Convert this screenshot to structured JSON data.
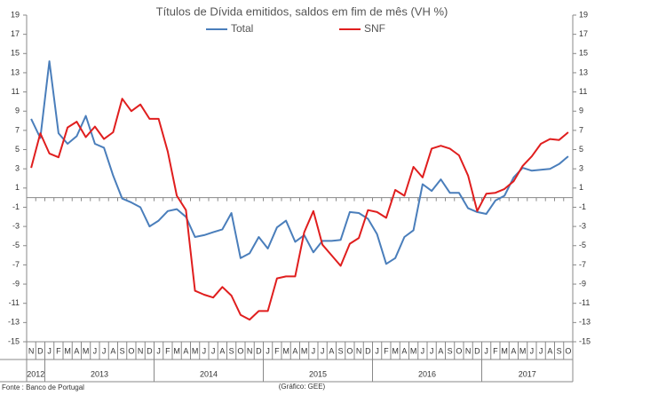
{
  "chart_data": {
    "type": "line",
    "title": "Títulos de Dívida emitidos, saldos em fim de mês  (VH %)",
    "categories": [
      "N",
      "D",
      "J",
      "F",
      "M",
      "A",
      "M",
      "J",
      "J",
      "A",
      "S",
      "O",
      "N",
      "D",
      "J",
      "F",
      "M",
      "A",
      "M",
      "J",
      "J",
      "A",
      "S",
      "O",
      "N",
      "D",
      "J",
      "F",
      "M",
      "A",
      "M",
      "J",
      "J",
      "A",
      "S",
      "O",
      "N",
      "D",
      "J",
      "F",
      "M",
      "A",
      "M",
      "J",
      "J",
      "A",
      "S",
      "O",
      "N",
      "D",
      "J",
      "F",
      "M",
      "A",
      "M",
      "J",
      "J",
      "A",
      "S",
      "O"
    ],
    "years": [
      "2012",
      "2013",
      "2014",
      "2015",
      "2016",
      "2017"
    ],
    "series": [
      {
        "name": "Total",
        "color": "#4a7ebb",
        "values": [
          8.2,
          6.2,
          14.2,
          6.7,
          5.6,
          6.4,
          8.5,
          5.6,
          5.2,
          2.3,
          -0.1,
          -0.5,
          -1.0,
          -3.0,
          -2.4,
          -1.4,
          -1.2,
          -2.0,
          -4.1,
          -3.9,
          -3.6,
          -3.3,
          -1.6,
          -6.3,
          -5.8,
          -4.1,
          -5.3,
          -3.1,
          -2.4,
          -4.6,
          -3.9,
          -5.7,
          -4.5,
          -4.5,
          -4.4,
          -1.5,
          -1.6,
          -2.2,
          -3.8,
          -6.9,
          -6.3,
          -4.1,
          -3.4,
          1.4,
          0.7,
          1.9,
          0.5,
          0.5,
          -1.1,
          -1.5,
          -1.7,
          -0.3,
          0.2,
          2.1,
          3.1,
          2.8,
          2.9,
          3.0,
          3.5,
          4.3
        ]
      },
      {
        "name": "SNF",
        "color": "#e01e1e",
        "values": [
          3.1,
          6.7,
          4.6,
          4.2,
          7.3,
          7.9,
          6.3,
          7.4,
          6.1,
          6.8,
          10.3,
          9.0,
          9.7,
          8.2,
          8.2,
          4.8,
          0.2,
          -1.3,
          -9.7,
          -10.1,
          -10.4,
          -9.3,
          -10.2,
          -12.2,
          -12.7,
          -11.8,
          -11.8,
          -8.4,
          -8.2,
          -8.2,
          -3.6,
          -1.4,
          -4.9,
          -6.0,
          -7.1,
          -4.8,
          -4.2,
          -1.3,
          -1.5,
          -2.1,
          0.8,
          0.2,
          3.2,
          2.1,
          5.1,
          5.4,
          5.1,
          4.4,
          2.3,
          -1.4,
          0.4,
          0.5,
          0.9,
          1.7,
          3.3,
          4.3,
          5.6,
          6.1,
          6.0,
          6.8
        ]
      }
    ],
    "ylim": [
      -15,
      19
    ],
    "yticks": [
      -15,
      -13,
      -11,
      -9,
      -7,
      -5,
      -3,
      -1,
      1,
      3,
      5,
      7,
      9,
      11,
      13,
      15,
      17,
      19
    ],
    "y2lim": [
      -15,
      19
    ],
    "y2ticks": [
      -15,
      -13,
      -11,
      -9,
      -7,
      -5,
      -3,
      -1,
      1,
      3,
      5,
      7,
      9,
      11,
      13,
      15,
      17,
      19
    ],
    "legend": "top",
    "source": "Fonte : Banco de Portugal",
    "credit": "(Gráfico: GEE)"
  }
}
